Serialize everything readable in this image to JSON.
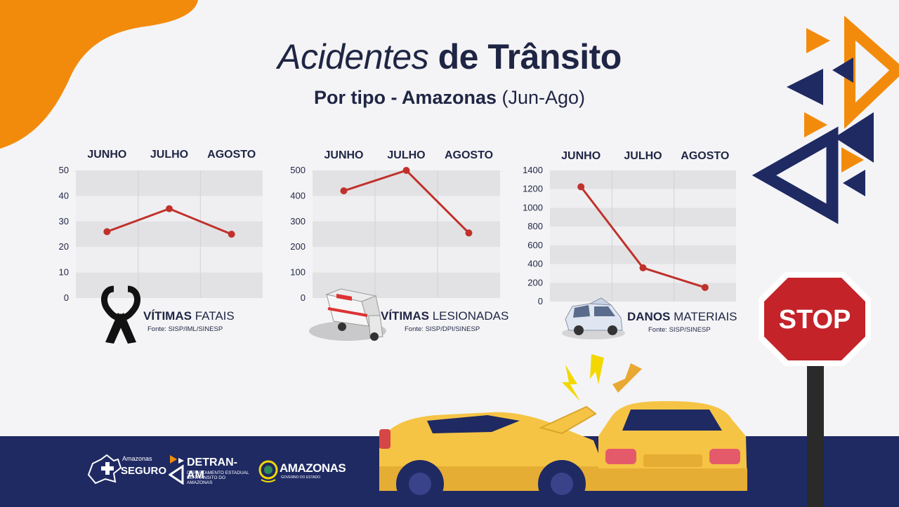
{
  "title": {
    "italic": "Acidentes",
    "bold": "de Trânsito"
  },
  "subtitle": {
    "bold": "Por tipo - Amazonas",
    "light": "(Jun-Ago)"
  },
  "colors": {
    "line": "#c0312b",
    "band_dark": "#e2e2e4",
    "band_light": "#efeff1",
    "navy": "#1f2a63",
    "orange": "#f28b0c"
  },
  "chart_data": [
    {
      "type": "line",
      "categories": [
        "JUNHO",
        "JULHO",
        "AGOSTO"
      ],
      "values": [
        26,
        35,
        25
      ],
      "ylim": [
        0,
        50
      ],
      "yticks": [
        "0",
        "10",
        "20",
        "30",
        "40",
        "50"
      ],
      "caption_bold": "VÍTIMAS",
      "caption_light": "FATAIS",
      "source": "Fonte: SISP/IML/SINESP",
      "icon": "black-ribbon-icon"
    },
    {
      "type": "line",
      "categories": [
        "JUNHO",
        "JULHO",
        "AGOSTO"
      ],
      "values": [
        420,
        500,
        255
      ],
      "ylim": [
        0,
        500
      ],
      "yticks": [
        "0",
        "100",
        "200",
        "300",
        "400",
        "500"
      ],
      "caption_bold": "VÍTIMAS",
      "caption_light": "LESIONADAS",
      "source": "Fonte: SISP/DPI/SINESP",
      "icon": "ambulance-icon"
    },
    {
      "type": "line",
      "categories": [
        "JUNHO",
        "JULHO",
        "AGOSTO"
      ],
      "values": [
        1225,
        360,
        150
      ],
      "ylim": [
        0,
        1400
      ],
      "yticks": [
        "0",
        "200",
        "400",
        "600",
        "800",
        "1000",
        "1200",
        "1400"
      ],
      "caption_bold": "DANOS",
      "caption_light": "MATERIAIS",
      "source": "Fonte: SISP/SINESP",
      "icon": "damaged-car-icon"
    }
  ],
  "stop_sign": {
    "text": "STOP"
  },
  "logos": {
    "seguro_top": "Amazonas",
    "seguro_main": "SEGURO",
    "detran_main": "DETRAN-AM",
    "detran_sub": "DEPARTAMENTO ESTADUAL DE TRÂNSITO DO AMAZONAS",
    "amazonas_main": "AMAZONAS",
    "amazonas_sub": "GOVERNO DO ESTADO"
  }
}
